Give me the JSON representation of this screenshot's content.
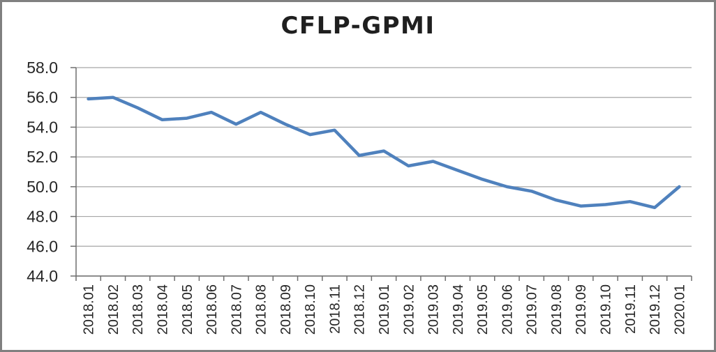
{
  "window": {
    "title": "CFLP-GPMI"
  },
  "chart_data": {
    "type": "line",
    "title": "CFLP-GPMI",
    "categories": [
      "2018.01",
      "2018.02",
      "2018.03",
      "2018.04",
      "2018.05",
      "2018.06",
      "2018.07",
      "2018.08",
      "2018.09",
      "2018.10",
      "2018.11",
      "2018.12",
      "2019.01",
      "2019.02",
      "2019.03",
      "2019.04",
      "2019.05",
      "2019.06",
      "2019.07",
      "2019.08",
      "2019.09",
      "2019.10",
      "2019.11",
      "2019.12",
      "2020.01"
    ],
    "series": [
      {
        "name": "CFLP-GPMI",
        "color": "#4F81BD",
        "values": [
          55.9,
          56.0,
          55.3,
          54.5,
          54.6,
          55.0,
          54.2,
          55.0,
          54.2,
          53.5,
          53.8,
          52.1,
          52.4,
          51.4,
          51.7,
          51.1,
          50.5,
          50.0,
          49.7,
          49.1,
          48.7,
          48.8,
          49.0,
          48.6,
          50.0
        ]
      }
    ],
    "xlabel": "",
    "ylabel": "",
    "ylim": [
      44.0,
      58.0
    ],
    "ytick_step": 2.0,
    "ytick_labels": [
      "44.0",
      "46.0",
      "48.0",
      "50.0",
      "52.0",
      "54.0",
      "56.0",
      "58.0"
    ],
    "x_label_rotation_degrees": 90,
    "grid": "horizontal",
    "legend_position": "none"
  },
  "colors": {
    "line": "#4F81BD",
    "gridline": "#A6A6A6",
    "axis": "#6E6E6E",
    "text": "#262626",
    "border": "#808080",
    "background": "#FFFFFF"
  }
}
